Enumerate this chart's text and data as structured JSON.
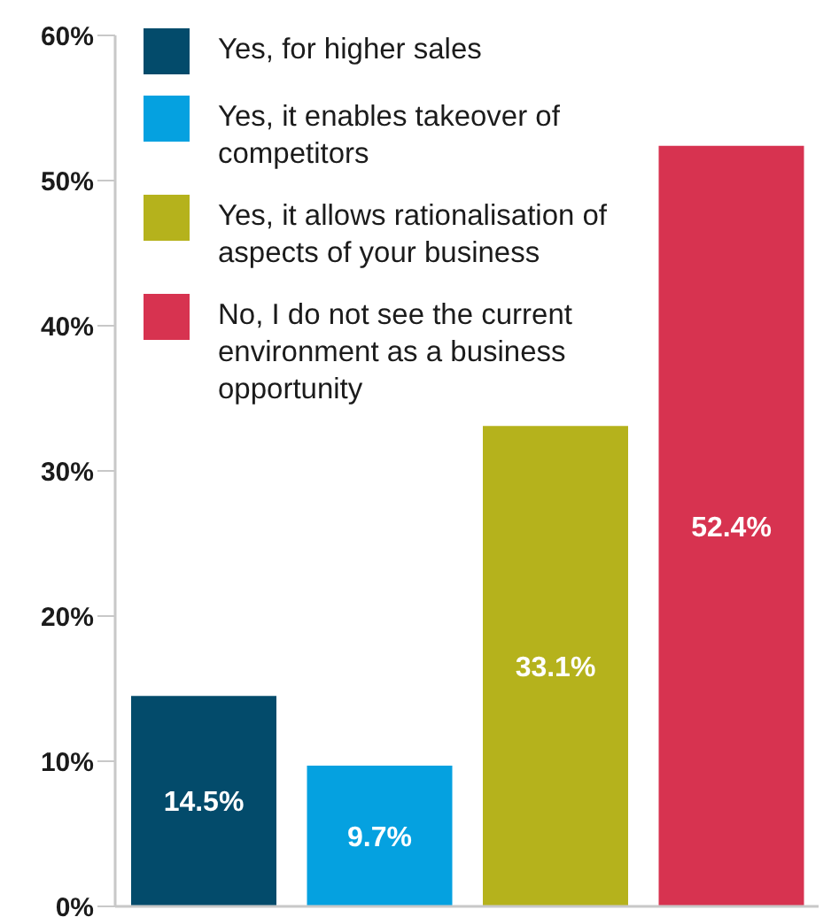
{
  "chart_data": {
    "type": "bar",
    "categories": [
      null,
      null,
      null,
      null
    ],
    "stacked": true,
    "series": [
      {
        "name": "Yes, for higher sales",
        "color": "#034b6b",
        "values": [
          14.5,
          null,
          null,
          null
        ],
        "value_labels": [
          "14.5%",
          null,
          null,
          null
        ]
      },
      {
        "name": "Yes, it enables takeover of competitors",
        "color": "#05a1e0",
        "values": [
          null,
          9.7,
          null,
          null
        ],
        "value_labels": [
          null,
          "9.7%",
          null,
          null
        ]
      },
      {
        "name": "Yes, it allows rationalisation of aspects of your business",
        "color": "#b5b21c",
        "values": [
          null,
          null,
          33.1,
          null
        ],
        "value_labels": [
          null,
          null,
          "33.1%",
          null
        ]
      },
      {
        "name": "No, I do not see the current environment as a business opportunity",
        "color": "#d73350",
        "values": [
          null,
          null,
          null,
          52.4
        ],
        "value_labels": [
          null,
          null,
          null,
          "52.4%"
        ]
      }
    ],
    "ylim": [
      0,
      60
    ],
    "yticks": [
      {
        "value": 0,
        "label": "0%"
      },
      {
        "value": 10,
        "label": "10%"
      },
      {
        "value": 20,
        "label": "20%"
      },
      {
        "value": 30,
        "label": "30%"
      },
      {
        "value": 40,
        "label": "40%"
      },
      {
        "value": 50,
        "label": "50%"
      },
      {
        "value": 60,
        "label": "60%"
      }
    ],
    "tick_labels": "y",
    "legend": "top left",
    "grid": false
  }
}
